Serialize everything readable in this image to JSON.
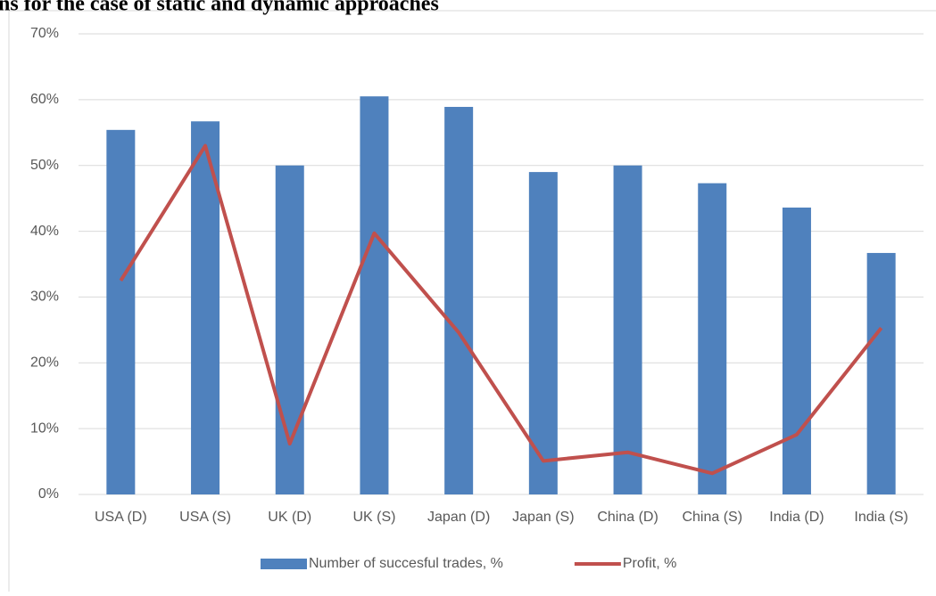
{
  "chart_data": {
    "type": "bar",
    "title": "ns for the case of static and dynamic approaches",
    "categories": [
      "USA (D)",
      "USA (S)",
      "UK (D)",
      "UK (S)",
      "Japan (D)",
      "Japan (S)",
      "China (D)",
      "China (S)",
      "India (D)",
      "India (S)"
    ],
    "series": [
      {
        "name": "Number of succesful trades, %",
        "type": "bar",
        "color": "#4f81bd",
        "values": [
          55.4,
          56.7,
          50,
          60.5,
          58.9,
          49,
          50,
          47.3,
          43.6,
          36.7
        ]
      },
      {
        "name": "Profit, %",
        "type": "line",
        "color": "#c0504d",
        "values": [
          32.5,
          53,
          7.7,
          39.7,
          24.6,
          5.1,
          6.4,
          3.2,
          9.1,
          25.3
        ]
      }
    ],
    "ylim": [
      0,
      70
    ],
    "yticks": [
      {
        "value": 0,
        "label": "0%"
      },
      {
        "value": 10,
        "label": "10%"
      },
      {
        "value": 20,
        "label": "20%"
      },
      {
        "value": 30,
        "label": "30%"
      },
      {
        "value": 40,
        "label": "40%"
      },
      {
        "value": 50,
        "label": "50%"
      },
      {
        "value": 60,
        "label": "60%"
      },
      {
        "value": 70,
        "label": "70%"
      }
    ],
    "grid": true,
    "legend": "bottom"
  }
}
